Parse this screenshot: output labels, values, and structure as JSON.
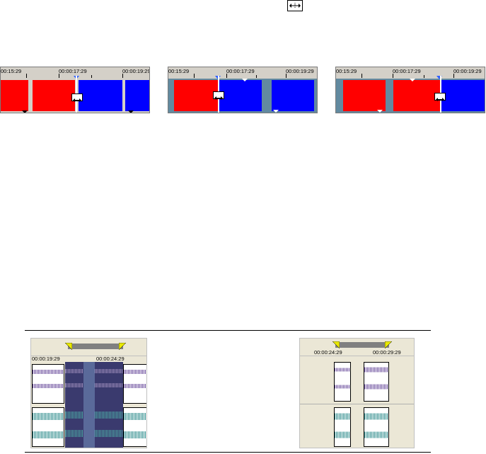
{
  "top_icon": {
    "name": "trim-cursor-icon"
  },
  "panels": [
    {
      "ticks": [
        "00:15:29",
        "00:00:17:29",
        "00:00:19:29"
      ]
    },
    {
      "ticks": [
        "00:15:29",
        "00:00:17:29",
        "00:00:19:29"
      ]
    },
    {
      "ticks": [
        "00:15:29",
        "00:00:17:29",
        "00:00:19:29"
      ]
    }
  ],
  "audio_panels": [
    {
      "ticks": [
        "00:00:19:29",
        "00:00:24:29"
      ]
    },
    {
      "ticks": [
        "00:00:24:29",
        "00:00:29:29"
      ]
    }
  ],
  "colors": {
    "clip_red": "#ff0000",
    "clip_blue": "#0000ff",
    "track_bg": "#628aa0",
    "ruler_bg": "#d4d0c8",
    "audio_bg": "#ebe7d6",
    "waveform_purple": "#6a4c9c",
    "waveform_teal": "#2e8c8c",
    "selection": "#3a3a6e",
    "loop_marker": "#e8e800"
  }
}
